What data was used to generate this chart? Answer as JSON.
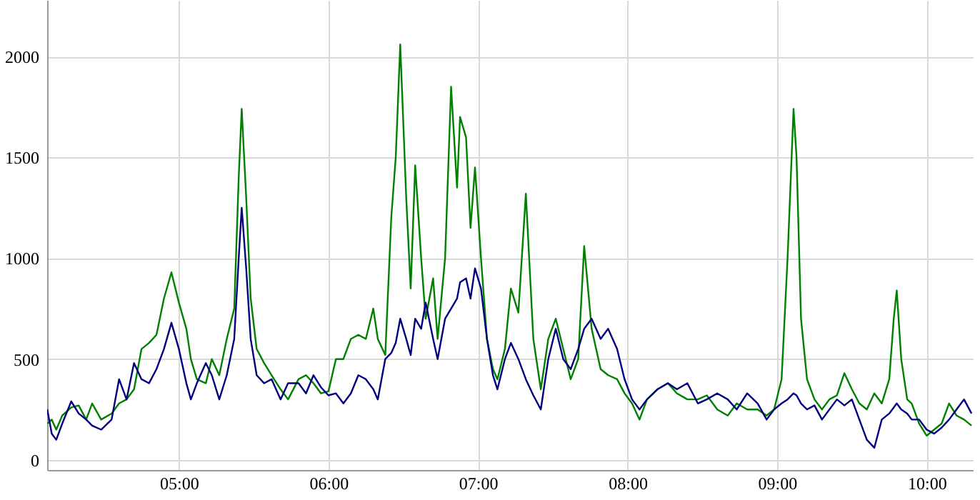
{
  "chart_data": {
    "type": "line",
    "x": [
      4.12,
      4.15,
      4.18,
      4.22,
      4.28,
      4.33,
      4.38,
      4.42,
      4.48,
      4.55,
      4.6,
      4.65,
      4.7,
      4.75,
      4.8,
      4.85,
      4.9,
      4.95,
      5.0,
      5.05,
      5.08,
      5.12,
      5.18,
      5.22,
      5.27,
      5.32,
      5.37,
      5.4,
      5.42,
      5.45,
      5.48,
      5.52,
      5.57,
      5.62,
      5.68,
      5.73,
      5.8,
      5.85,
      5.9,
      5.95,
      6.0,
      6.05,
      6.1,
      6.15,
      6.2,
      6.25,
      6.3,
      6.33,
      6.38,
      6.42,
      6.45,
      6.48,
      6.52,
      6.55,
      6.58,
      6.62,
      6.65,
      6.7,
      6.73,
      6.78,
      6.82,
      6.86,
      6.88,
      6.92,
      6.95,
      6.98,
      7.02,
      7.06,
      7.1,
      7.13,
      7.18,
      7.22,
      7.27,
      7.32,
      7.37,
      7.42,
      7.47,
      7.52,
      7.57,
      7.62,
      7.67,
      7.71,
      7.76,
      7.82,
      7.87,
      7.93,
      7.98,
      8.03,
      8.08,
      8.13,
      8.2,
      8.27,
      8.33,
      8.4,
      8.47,
      8.53,
      8.6,
      8.67,
      8.73,
      8.8,
      8.87,
      8.93,
      8.98,
      9.03,
      9.07,
      9.11,
      9.13,
      9.16,
      9.2,
      9.25,
      9.3,
      9.35,
      9.4,
      9.45,
      9.5,
      9.55,
      9.6,
      9.65,
      9.7,
      9.75,
      9.78,
      9.8,
      9.83,
      9.87,
      9.9,
      9.95,
      10.0,
      10.05,
      10.1,
      10.15,
      10.2,
      10.25,
      10.3
    ],
    "series": [
      {
        "color": "#008000",
        "values": [
          180,
          200,
          150,
          220,
          260,
          270,
          200,
          280,
          200,
          230,
          280,
          300,
          350,
          550,
          580,
          620,
          800,
          930,
          780,
          650,
          500,
          400,
          380,
          500,
          420,
          600,
          750,
          1400,
          1740,
          1300,
          800,
          550,
          480,
          420,
          350,
          300,
          400,
          420,
          380,
          330,
          340,
          500,
          500,
          600,
          620,
          600,
          750,
          600,
          520,
          1200,
          1500,
          2060,
          1300,
          850,
          1460,
          1000,
          700,
          900,
          600,
          1000,
          1850,
          1350,
          1700,
          1600,
          1150,
          1450,
          1000,
          600,
          450,
          400,
          550,
          850,
          730,
          1320,
          600,
          350,
          600,
          700,
          550,
          400,
          500,
          1060,
          650,
          450,
          420,
          400,
          330,
          280,
          200,
          300,
          350,
          380,
          330,
          300,
          300,
          320,
          250,
          220,
          280,
          250,
          250,
          220,
          250,
          400,
          1000,
          1740,
          1500,
          700,
          400,
          300,
          250,
          300,
          320,
          430,
          350,
          280,
          250,
          330,
          280,
          400,
          700,
          840,
          500,
          300,
          280,
          180,
          120,
          150,
          180,
          280,
          220,
          200,
          170
        ]
      },
      {
        "color": "#000080",
        "values": [
          250,
          130,
          100,
          180,
          290,
          230,
          200,
          170,
          150,
          200,
          400,
          300,
          480,
          400,
          380,
          450,
          550,
          680,
          550,
          380,
          300,
          380,
          480,
          420,
          300,
          420,
          600,
          1000,
          1250,
          950,
          600,
          420,
          380,
          400,
          300,
          380,
          380,
          330,
          420,
          360,
          320,
          330,
          280,
          330,
          420,
          400,
          350,
          300,
          500,
          530,
          580,
          700,
          600,
          520,
          700,
          650,
          780,
          600,
          500,
          700,
          750,
          800,
          880,
          900,
          800,
          950,
          850,
          600,
          420,
          350,
          500,
          580,
          500,
          400,
          320,
          250,
          500,
          650,
          500,
          450,
          550,
          650,
          700,
          600,
          650,
          550,
          400,
          300,
          250,
          300,
          350,
          380,
          350,
          380,
          280,
          300,
          330,
          300,
          250,
          330,
          280,
          200,
          250,
          280,
          300,
          330,
          320,
          280,
          250,
          270,
          200,
          250,
          300,
          270,
          300,
          200,
          100,
          60,
          200,
          230,
          260,
          280,
          250,
          230,
          200,
          200,
          150,
          130,
          160,
          200,
          250,
          300,
          230
        ]
      }
    ],
    "xlim": [
      4.119,
      10.309
    ],
    "xticks": [
      {
        "value": 5,
        "label": "05:00"
      },
      {
        "value": 6,
        "label": "06:00"
      },
      {
        "value": 7,
        "label": "07:00"
      },
      {
        "value": 8,
        "label": "08:00"
      },
      {
        "value": 9,
        "label": "09:00"
      },
      {
        "value": 10,
        "label": "10:00"
      }
    ],
    "ylim": [
      -50,
      2280
    ],
    "yticks": [
      0,
      500,
      1000,
      1500,
      2000
    ],
    "grid": true
  }
}
